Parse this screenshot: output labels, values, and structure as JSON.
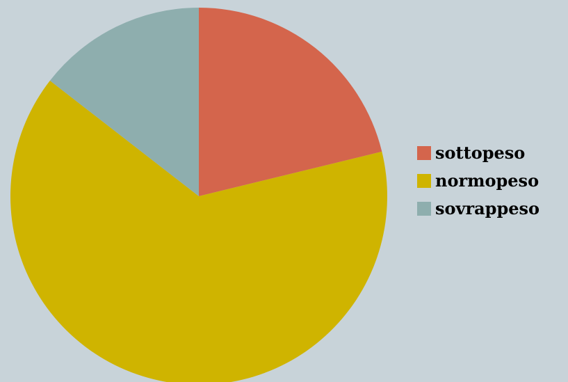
{
  "chart_data": {
    "type": "pie",
    "categories": [
      "sottopeso",
      "normopeso",
      "sovrappeso"
    ],
    "values": [
      21.2,
      64.3,
      14.5
    ],
    "colors": [
      "#d4654c",
      "#cfb400",
      "#8eaeae"
    ],
    "legend": "right",
    "start_angle": "12 o'clock",
    "direction": "clockwise"
  }
}
